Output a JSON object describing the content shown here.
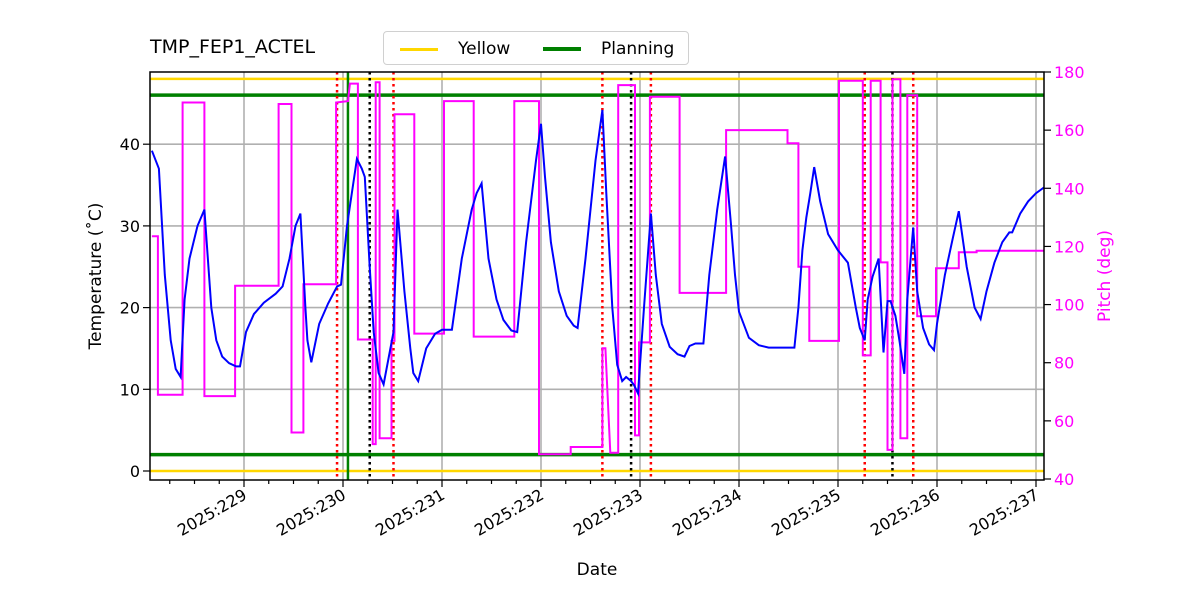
{
  "chart_data": {
    "type": "line",
    "title": "TMP_FEP1_ACTEL",
    "xlabel": "Date",
    "ylabel": "Temperature ($^\\circ$C)",
    "ylabel_display": "Temperature (˚C)",
    "y2label": "Pitch (deg)",
    "xlim": [
      228.07,
      237.08
    ],
    "ylim": [
      -0.9,
      48.8
    ],
    "y2lim": [
      40,
      180
    ],
    "x_ticks": [
      229,
      230,
      231,
      232,
      233,
      234,
      235,
      236,
      237
    ],
    "x_tick_labels": [
      "2025:229",
      "2025:230",
      "2025:231",
      "2025:232",
      "2025:233",
      "2025:234",
      "2025:235",
      "2025:236",
      "2025:237"
    ],
    "y_ticks": [
      0,
      10,
      20,
      30,
      40
    ],
    "y2_ticks": [
      40,
      60,
      80,
      100,
      120,
      140,
      160,
      180
    ],
    "grid": true,
    "legend": {
      "position": "top-center (outside)",
      "entries": [
        "Yellow",
        "Planning"
      ]
    },
    "colors": {
      "temperature": "#0000ff",
      "pitch": "#ff00ff",
      "yellow": "#ffd700",
      "planning": "#008000",
      "grid": "#b0b0b0",
      "red_vline": "#ff0000",
      "black_vline": "#000000"
    },
    "hlines": [
      {
        "name": "Yellow",
        "values": [
          0,
          48
        ],
        "color": "#ffd700"
      },
      {
        "name": "Planning",
        "values": [
          2,
          46
        ],
        "color": "#008000"
      }
    ],
    "vlines": {
      "green_solid": [
        230.05
      ],
      "red_dotted": [
        229.94,
        230.51,
        232.62,
        233.11,
        235.27,
        235.76
      ],
      "black_dotted": [
        230.27,
        232.91,
        235.55
      ]
    },
    "series": [
      {
        "name": "TMP_FEP1_ACTEL",
        "axis": "left",
        "color": "#0000ff",
        "x": [
          228.07,
          228.14,
          228.2,
          228.26,
          228.31,
          228.36,
          228.4,
          228.45,
          228.53,
          228.6,
          228.67,
          228.72,
          228.78,
          228.85,
          228.92,
          228.96,
          229.02,
          229.1,
          229.2,
          229.32,
          229.39,
          229.46,
          229.52,
          229.57,
          229.62,
          229.64,
          229.68,
          229.76,
          229.85,
          229.94,
          229.98,
          230.04,
          230.14,
          230.19,
          230.22,
          230.27,
          230.31,
          230.36,
          230.41,
          230.51,
          230.55,
          230.62,
          230.68,
          230.71,
          230.76,
          230.84,
          230.93,
          231.0,
          231.1,
          231.2,
          231.3,
          231.35,
          231.4,
          231.47,
          231.55,
          231.62,
          231.7,
          231.76,
          231.85,
          231.95,
          232.0,
          232.04,
          232.1,
          232.18,
          232.26,
          232.33,
          232.37,
          232.45,
          232.55,
          232.62,
          232.66,
          232.72,
          232.77,
          232.82,
          232.86,
          232.91,
          232.94,
          232.98,
          233.04,
          233.11,
          233.16,
          233.22,
          233.3,
          233.38,
          233.45,
          233.5,
          233.56,
          233.64,
          233.7,
          233.78,
          233.86,
          233.92,
          233.96,
          234.0,
          234.1,
          234.2,
          234.3,
          234.4,
          234.5,
          234.56,
          234.6,
          234.64,
          234.68,
          234.72,
          234.76,
          234.82,
          234.9,
          235.0,
          235.1,
          235.18,
          235.22,
          235.27,
          235.3,
          235.35,
          235.41,
          235.46,
          235.5,
          235.53,
          235.58,
          235.62,
          235.67,
          235.7,
          235.76,
          235.8,
          235.86,
          235.92,
          235.97,
          236.0,
          236.08,
          236.16,
          236.22,
          236.3,
          236.38,
          236.44,
          236.5,
          236.58,
          236.66,
          236.73,
          236.76,
          236.84,
          236.92,
          237.0,
          237.08
        ],
        "values": [
          39.2,
          37.0,
          24.0,
          16.0,
          12.5,
          11.5,
          21.0,
          26.0,
          30.0,
          32.0,
          20.0,
          16.0,
          14.0,
          13.2,
          12.8,
          12.8,
          17.0,
          19.2,
          20.6,
          21.7,
          22.6,
          26.0,
          30.0,
          31.5,
          20.0,
          16.0,
          13.3,
          18.0,
          20.5,
          22.6,
          22.8,
          30.0,
          38.2,
          37.0,
          36.0,
          25.0,
          17.0,
          12.0,
          10.6,
          17.0,
          32.0,
          22.0,
          15.0,
          12.0,
          11.0,
          15.0,
          16.8,
          17.3,
          17.3,
          26.0,
          32.0,
          34.0,
          35.2,
          26.0,
          21.0,
          18.5,
          17.2,
          17.0,
          28.0,
          38.0,
          42.5,
          36.0,
          28.0,
          22.0,
          19.0,
          17.8,
          17.5,
          26.0,
          38.0,
          44.2,
          34.0,
          20.0,
          13.0,
          11.0,
          11.5,
          11.0,
          10.5,
          9.5,
          20.0,
          31.5,
          24.0,
          18.0,
          15.2,
          14.3,
          14.0,
          15.3,
          15.6,
          15.6,
          24.0,
          32.0,
          38.5,
          30.0,
          24.0,
          19.5,
          16.3,
          15.4,
          15.1,
          15.1,
          15.1,
          15.1,
          20.0,
          27.0,
          31.0,
          34.0,
          37.2,
          33.0,
          29.0,
          27.0,
          25.5,
          20.0,
          17.5,
          16.0,
          21.0,
          23.8,
          26.0,
          14.5,
          20.8,
          20.8,
          19.0,
          16.0,
          11.9,
          21.0,
          29.8,
          22.0,
          17.5,
          15.5,
          14.8,
          18.0,
          24.0,
          28.5,
          31.8,
          25.0,
          20.0,
          18.6,
          22.0,
          25.5,
          28.0,
          29.2,
          29.2,
          31.5,
          33.0,
          34.0,
          34.7
        ]
      },
      {
        "name": "Pitch",
        "axis": "right",
        "color": "#ff00ff",
        "x": [
          228.07,
          228.13,
          228.13,
          228.38,
          228.38,
          228.6,
          228.6,
          228.91,
          228.91,
          229.35,
          229.35,
          229.48,
          229.48,
          229.6,
          229.6,
          229.65,
          229.65,
          229.93,
          229.93,
          230.05,
          230.07,
          230.15,
          230.15,
          230.3,
          230.3,
          230.33,
          230.33,
          230.37,
          230.37,
          230.49,
          230.49,
          230.52,
          230.52,
          230.72,
          230.72,
          231.02,
          231.02,
          231.32,
          231.32,
          231.73,
          231.73,
          231.98,
          231.98,
          232.3,
          232.3,
          232.62,
          232.62,
          232.65,
          232.7,
          232.78,
          232.78,
          232.95,
          232.95,
          232.99,
          232.99,
          233.1,
          233.1,
          233.4,
          233.4,
          233.65,
          233.65,
          233.87,
          233.87,
          234.49,
          234.49,
          234.6,
          234.6,
          234.71,
          234.71,
          235.01,
          235.01,
          235.25,
          235.25,
          235.33,
          235.33,
          235.43,
          235.43,
          235.5,
          235.5,
          235.55,
          235.55,
          235.63,
          235.63,
          235.7,
          235.7,
          235.8,
          235.8,
          235.99,
          235.99,
          236.22,
          236.22,
          236.4,
          236.4,
          236.74,
          236.74,
          237.08
        ],
        "values": [
          123.5,
          123.5,
          69.0,
          69.0,
          169.5,
          169.5,
          68.5,
          68.5,
          106.5,
          106.5,
          169.0,
          169.0,
          56.0,
          56.0,
          107.0,
          107.0,
          107.0,
          107.0,
          169.5,
          170.0,
          176.0,
          176.0,
          88.0,
          88.0,
          52.0,
          52.0,
          176.5,
          176.5,
          54.0,
          54.0,
          87.5,
          87.5,
          165.5,
          165.5,
          90.0,
          90.0,
          170.0,
          170.0,
          89.0,
          89.0,
          170.0,
          170.0,
          48.5,
          48.5,
          51.0,
          51.0,
          85.0,
          85.0,
          49.0,
          49.0,
          175.5,
          175.5,
          55.0,
          55.0,
          87.0,
          87.0,
          171.5,
          171.5,
          104.0,
          104.0,
          104.0,
          104.0,
          160.0,
          160.0,
          155.5,
          155.5,
          113.0,
          113.0,
          87.5,
          87.5,
          177.0,
          177.0,
          82.5,
          82.5,
          177.0,
          177.0,
          114.5,
          114.5,
          50.0,
          50.0,
          177.5,
          177.5,
          54.0,
          54.0,
          172.0,
          172.0,
          96.0,
          96.0,
          112.5,
          112.5,
          118.0,
          118.0,
          118.5,
          118.5,
          118.5,
          118.5
        ]
      }
    ]
  }
}
